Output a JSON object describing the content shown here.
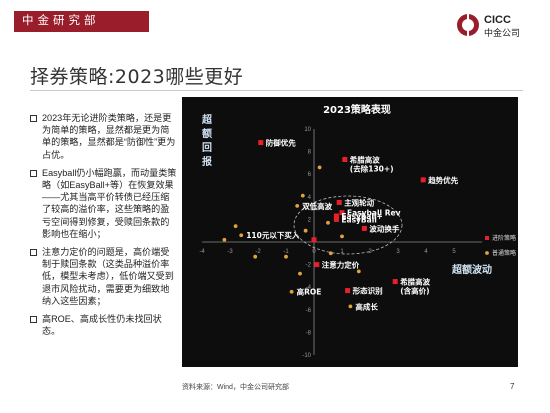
{
  "header": {
    "department": "中金研究部",
    "logo_text_en": "CICC",
    "logo_text_cn": "中金公司"
  },
  "page": {
    "title": "择券策略:2023哪些更好",
    "source_note": "资料来源：Wind，中金公司研究部",
    "page_number": "7"
  },
  "bullets": [
    "2023年无论进阶类策略，还是更为简单的策略，显然都是更为简单的策略，显然都是“防御性”更为占优。",
    "Easyball仍小幅跑赢，而动量类策略（如EasyBall+等）在恢复效果——尤其当高平价转债已经压缩了较高的溢价率，这些策略的盈亏空间得到修复，受赎回条款的影响也在缩小；",
    "注意力定价的问题是，高价端受制于赎回条款（这类品种溢价率低，模型未考虑），低价端又受到退市风险扰动，需要更为细致地纳入这些因素；",
    "高ROE、高成长性仍未找回状态。"
  ],
  "chart_data": {
    "type": "scatter",
    "title": "2023策略表现",
    "xlabel": "超额波动",
    "ylabel": "超额回报",
    "xlim": [
      -4,
      6
    ],
    "ylim": [
      -10,
      10
    ],
    "x_ticks": [
      -4,
      -3,
      -2,
      -1,
      0,
      1,
      2,
      3,
      4,
      5
    ],
    "y_ticks": [
      -10,
      -8,
      -6,
      -4,
      -2,
      0,
      2,
      4,
      6,
      8,
      10
    ],
    "legend": [
      "进阶策略",
      "普通策略"
    ],
    "legend_position": "right",
    "colors": {
      "advanced": "#e8202a",
      "ordinary": "#e0a23a",
      "background": "#0d0d0d"
    },
    "series": [
      {
        "name": "进阶策略",
        "points": [
          {
            "x": -1.9,
            "y": 8.8,
            "label": "防御优先"
          },
          {
            "x": 1.1,
            "y": 7.3,
            "label": "希腊高波 (去除130+)"
          },
          {
            "x": 3.9,
            "y": 5.5,
            "label": "趋势优先"
          },
          {
            "x": 0.9,
            "y": 3.5,
            "label": "主观轮动"
          },
          {
            "x": 1.0,
            "y": 2.6,
            "label": "Easyball Rev"
          },
          {
            "x": 0.8,
            "y": 2.3,
            "label": "Easyball+"
          },
          {
            "x": 0.8,
            "y": 2.0,
            "label": "EasyBall"
          },
          {
            "x": 1.8,
            "y": 1.2,
            "label": "波动换手"
          },
          {
            "x": 0.1,
            "y": -2.0,
            "label": "注意力定价"
          },
          {
            "x": 2.9,
            "y": -3.5,
            "label": "希腊高波 (含高价)"
          },
          {
            "x": 1.2,
            "y": -4.3,
            "label": "形态识别"
          },
          {
            "x": 0.0,
            "y": 0.2,
            "label": ""
          }
        ]
      },
      {
        "name": "普通策略",
        "points": [
          {
            "x": -0.6,
            "y": 3.2,
            "label": "双低高波"
          },
          {
            "x": -2.6,
            "y": 0.6,
            "label": "110元以下买入"
          },
          {
            "x": -0.8,
            "y": -4.4,
            "label": "高ROE"
          },
          {
            "x": 1.3,
            "y": -5.7,
            "label": "高成长"
          },
          {
            "x": -2.8,
            "y": 1.4,
            "label": ""
          },
          {
            "x": -3.2,
            "y": 0.2,
            "label": ""
          },
          {
            "x": -2.1,
            "y": -1.3,
            "label": ""
          },
          {
            "x": -1.0,
            "y": -1.3,
            "label": ""
          },
          {
            "x": -0.3,
            "y": 1.0,
            "label": ""
          },
          {
            "x": 0.6,
            "y": -1.0,
            "label": ""
          },
          {
            "x": 1.0,
            "y": 0.5,
            "label": ""
          },
          {
            "x": -0.5,
            "y": -2.8,
            "label": ""
          },
          {
            "x": 1.6,
            "y": -2.6,
            "label": ""
          },
          {
            "x": 0.5,
            "y": 1.7,
            "label": ""
          },
          {
            "x": -0.4,
            "y": 4.1,
            "label": ""
          },
          {
            "x": 0.2,
            "y": 6.6,
            "label": ""
          }
        ]
      }
    ]
  }
}
